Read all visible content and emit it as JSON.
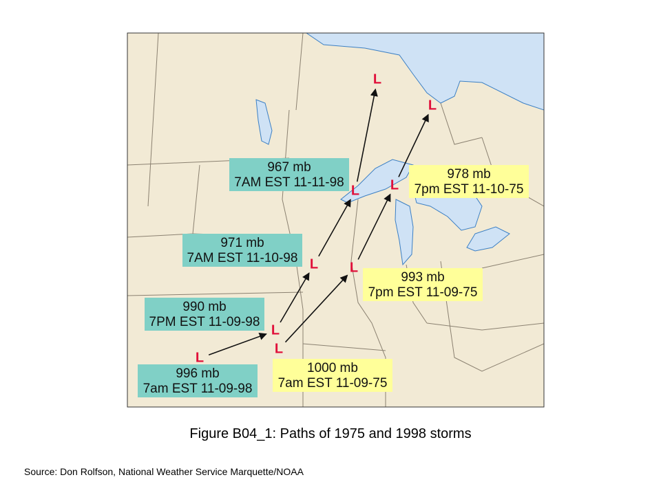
{
  "figure": {
    "caption": "Figure B04_1: Paths of 1975 and 1998 storms",
    "source": "Source:  Don Rolfson, National Weather Service Marquette/NOAA",
    "storms": [
      {
        "points": [
          {
            "marker": "L",
            "pressure": "996 mb",
            "time": "7am EST 11-09-98"
          },
          {
            "marker": "L",
            "pressure": "990 mb",
            "time": "7PM EST 11-09-98"
          },
          {
            "marker": "L",
            "pressure": "971 mb",
            "time": "7AM EST 11-10-98"
          },
          {
            "marker": "L",
            "pressure": "967 mb",
            "time": "7AM EST 11-11-98"
          },
          {
            "marker": "L"
          }
        ]
      },
      {
        "points": [
          {
            "marker": "L",
            "pressure": "1000 mb",
            "time": "7am EST 11-09-75"
          },
          {
            "marker": "L",
            "pressure": "993 mb",
            "time": "7pm EST 11-09-75"
          },
          {
            "marker": "L",
            "pressure": "978 mb",
            "time": "7pm EST 11-10-75"
          },
          {
            "marker": "L"
          }
        ]
      }
    ]
  }
}
